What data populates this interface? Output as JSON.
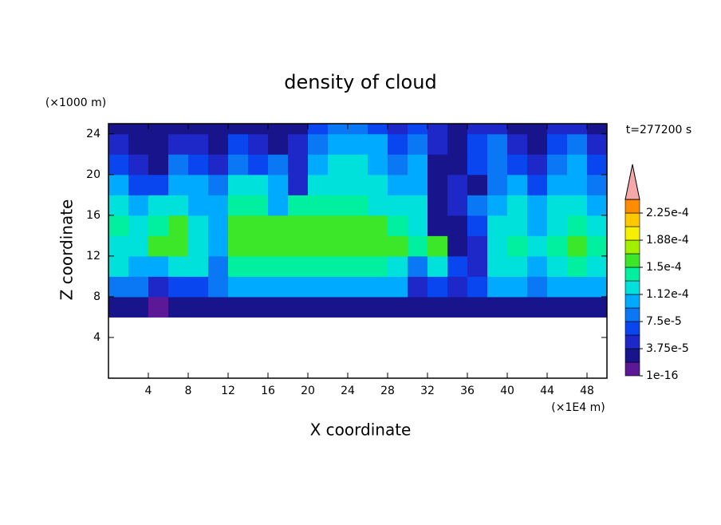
{
  "chart_data": {
    "type": "heatmap",
    "title": "density of cloud",
    "x_label": "X coordinate",
    "y_label": "Z coordinate",
    "x_unit": "(×1E4 m)",
    "y_unit": "(×1000 m)",
    "annotation": "t=277200 s",
    "x": [
      1,
      3,
      5,
      7,
      9,
      11,
      13,
      15,
      17,
      19,
      21,
      23,
      25,
      27,
      29,
      31,
      33,
      35,
      37,
      39,
      41,
      43,
      45,
      47,
      49
    ],
    "y": [
      1,
      3,
      5,
      7,
      9,
      11,
      13,
      15,
      17,
      19,
      21,
      23,
      25
    ],
    "values": [
      [
        null,
        null,
        null,
        null,
        null,
        null,
        null,
        null,
        null,
        null,
        null,
        null,
        null,
        null,
        null,
        null,
        null,
        null,
        null,
        null,
        null,
        null,
        null,
        null,
        null
      ],
      [
        null,
        null,
        null,
        null,
        null,
        null,
        null,
        null,
        null,
        null,
        null,
        null,
        null,
        null,
        null,
        null,
        null,
        null,
        null,
        null,
        null,
        null,
        null,
        null,
        null
      ],
      [
        null,
        null,
        null,
        null,
        null,
        null,
        null,
        null,
        null,
        null,
        null,
        null,
        null,
        null,
        null,
        null,
        null,
        null,
        null,
        null,
        null,
        null,
        null,
        null,
        null
      ],
      [
        2e-05,
        2e-05,
        1e-05,
        2e-05,
        2e-05,
        3e-05,
        3e-05,
        3e-05,
        3e-05,
        3e-05,
        3e-05,
        3e-05,
        3e-05,
        3e-05,
        3e-05,
        2e-05,
        2e-05,
        2e-05,
        2e-05,
        3e-05,
        3e-05,
        3e-05,
        3e-05,
        3e-05,
        3e-05
      ],
      [
        9e-05,
        8e-05,
        5e-05,
        7e-05,
        6e-05,
        9e-05,
        0.0001,
        0.0001,
        0.0001,
        0.0001,
        0.0001,
        0.0001,
        0.0001,
        0.0001,
        0.0001,
        5e-05,
        6e-05,
        4e-05,
        7e-05,
        0.0001,
        0.0001,
        9e-05,
        0.0001,
        0.0001,
        0.0001
      ],
      [
        0.00012,
        0.00011,
        0.0001,
        0.00013,
        0.00012,
        8e-05,
        0.00014,
        0.00014,
        0.00014,
        0.00014,
        0.00014,
        0.00014,
        0.00014,
        0.00014,
        0.00013,
        9e-05,
        0.00013,
        6e-05,
        4e-05,
        0.00012,
        0.00013,
        0.0001,
        0.00013,
        0.00014,
        0.00013
      ],
      [
        0.00013,
        0.00012,
        0.00015,
        0.00015,
        0.00013,
        0.0001,
        0.00016,
        0.00016,
        0.00016,
        0.00016,
        0.00016,
        0.00016,
        0.00016,
        0.00016,
        0.00015,
        0.00014,
        0.00015,
        3e-05,
        5e-05,
        0.00013,
        0.00014,
        0.00012,
        0.00014,
        0.00015,
        0.00014
      ],
      [
        0.00014,
        0.00012,
        0.00014,
        0.00015,
        0.00012,
        0.00011,
        0.00015,
        0.00015,
        0.00015,
        0.00015,
        0.00015,
        0.00015,
        0.00015,
        0.00015,
        0.00014,
        0.00013,
        3e-05,
        2e-05,
        6e-05,
        0.00012,
        0.00013,
        0.00011,
        0.00013,
        0.00014,
        0.00013
      ],
      [
        0.00013,
        0.0001,
        0.00012,
        0.00013,
        0.00011,
        0.0001,
        0.00014,
        0.00014,
        0.00011,
        0.00014,
        0.00014,
        0.00014,
        0.00014,
        0.00013,
        0.00013,
        0.00012,
        3e-05,
        5e-05,
        8e-05,
        0.00011,
        0.00012,
        0.0001,
        0.00012,
        0.00012,
        0.00011
      ],
      [
        0.00011,
        7e-05,
        6e-05,
        0.00011,
        0.0001,
        9e-05,
        0.00012,
        0.00012,
        0.0001,
        4e-05,
        0.00012,
        0.00013,
        0.00013,
        0.00012,
        0.0001,
        0.00011,
        2e-05,
        4e-05,
        2e-05,
        8e-05,
        0.0001,
        6e-05,
        0.0001,
        0.00011,
        9e-05
      ],
      [
        7e-05,
        4e-05,
        3e-05,
        8e-05,
        6e-05,
        5e-05,
        9e-05,
        6e-05,
        8e-05,
        5e-05,
        0.00011,
        0.00012,
        0.00012,
        0.00011,
        8e-05,
        0.0001,
        3e-05,
        2e-05,
        6e-05,
        9e-05,
        6e-05,
        4e-05,
        8e-05,
        0.0001,
        7e-05
      ],
      [
        4e-05,
        3e-05,
        2e-05,
        5e-05,
        4e-05,
        3e-05,
        6e-05,
        4e-05,
        3e-05,
        4e-05,
        9e-05,
        0.00011,
        0.00011,
        0.0001,
        6e-05,
        9e-05,
        5e-05,
        3e-05,
        7e-05,
        8e-05,
        4e-05,
        3e-05,
        6e-05,
        8e-05,
        4e-05
      ],
      [
        3e-05,
        2e-05,
        2e-05,
        3e-05,
        3e-05,
        2e-05,
        3e-05,
        3e-05,
        2e-05,
        3e-05,
        6e-05,
        8e-05,
        8e-05,
        7e-05,
        4e-05,
        7e-05,
        4e-05,
        2e-05,
        5e-05,
        5e-05,
        3e-05,
        2e-05,
        4e-05,
        5e-05,
        3e-05
      ]
    ],
    "xlim": [
      0,
      50
    ],
    "ylim": [
      0,
      25
    ],
    "xticks": [
      4,
      8,
      12,
      16,
      20,
      24,
      28,
      32,
      36,
      40,
      44,
      48
    ],
    "yticks": [
      4,
      8,
      12,
      16,
      20,
      24
    ],
    "levels": [
      1e-16,
      1.875e-05,
      3.75e-05,
      5.625e-05,
      7.5e-05,
      9.375e-05,
      0.0001125,
      0.00013125,
      0.00015,
      0.00016875,
      0.0001875,
      0.00020625,
      0.000225,
      0.00024375
    ],
    "colors": [
      "#5c1896",
      "#18148c",
      "#1e28c8",
      "#0a46f0",
      "#0a78f5",
      "#00aaff",
      "#00e1dc",
      "#00f0a0",
      "#3ce628",
      "#a0f000",
      "#f5f000",
      "#ffc800",
      "#ff8c00"
    ],
    "extend_color": "#f4a8a8",
    "colorbar_ticks": [
      1e-16,
      {
        "value": 3.75e-05,
        "label": "3.75e-5"
      },
      {
        "value": 7.5e-05,
        "label": "7.5e-5"
      },
      {
        "value": 0.0001125,
        "label": "1.12e-4"
      },
      {
        "value": 0.00015,
        "label": "1.5e-4"
      },
      {
        "value": 0.0001875,
        "label": "1.88e-4"
      },
      {
        "value": 0.000225,
        "label": "2.25e-4"
      }
    ]
  }
}
